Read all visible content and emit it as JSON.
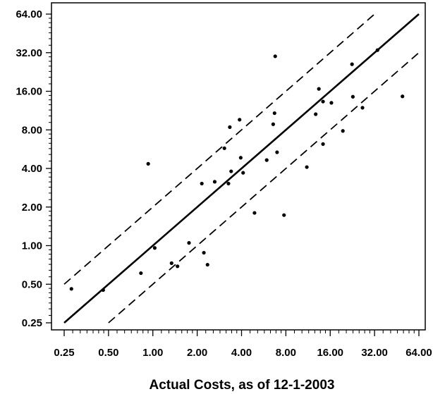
{
  "chart_data": {
    "type": "scatter",
    "title": "",
    "xlabel": "Actual Costs, as of 12-1-2003",
    "ylabel": "",
    "x_scale": "log2",
    "y_scale": "log2",
    "xlim": [
      0.25,
      64
    ],
    "ylim": [
      0.25,
      64
    ],
    "x_ticks": [
      0.25,
      0.5,
      1,
      2,
      4,
      8,
      16,
      32,
      64
    ],
    "x_tick_labels": [
      "0.25",
      "0.50",
      "1.00",
      "2.00",
      "4.00",
      "8.00",
      "16.00",
      "32.00",
      "64.00"
    ],
    "y_ticks": [
      0.25,
      0.5,
      1,
      2,
      4,
      8,
      16,
      32,
      64
    ],
    "y_tick_labels": [
      "0.25",
      "0.50",
      "1.00",
      "2.00",
      "4.00",
      "8.00",
      "16.00",
      "32.00",
      "64.00"
    ],
    "grid": false,
    "points": [
      {
        "x": 0.28,
        "y": 0.46
      },
      {
        "x": 0.46,
        "y": 0.45
      },
      {
        "x": 0.83,
        "y": 0.61
      },
      {
        "x": 0.93,
        "y": 4.35
      },
      {
        "x": 1.03,
        "y": 0.96
      },
      {
        "x": 1.34,
        "y": 0.73
      },
      {
        "x": 1.47,
        "y": 0.69
      },
      {
        "x": 1.76,
        "y": 1.05
      },
      {
        "x": 2.15,
        "y": 3.05
      },
      {
        "x": 2.22,
        "y": 0.88
      },
      {
        "x": 2.35,
        "y": 0.71
      },
      {
        "x": 2.63,
        "y": 3.15
      },
      {
        "x": 3.06,
        "y": 5.75
      },
      {
        "x": 3.26,
        "y": 3.05
      },
      {
        "x": 3.33,
        "y": 8.4
      },
      {
        "x": 3.4,
        "y": 3.8
      },
      {
        "x": 3.88,
        "y": 9.6
      },
      {
        "x": 3.95,
        "y": 4.85
      },
      {
        "x": 4.1,
        "y": 3.7
      },
      {
        "x": 4.9,
        "y": 1.8
      },
      {
        "x": 5.93,
        "y": 4.65
      },
      {
        "x": 6.56,
        "y": 8.85
      },
      {
        "x": 6.7,
        "y": 10.8
      },
      {
        "x": 6.77,
        "y": 30.0
      },
      {
        "x": 6.97,
        "y": 5.35
      },
      {
        "x": 7.77,
        "y": 1.73
      },
      {
        "x": 11.1,
        "y": 4.1
      },
      {
        "x": 12.75,
        "y": 10.6
      },
      {
        "x": 13.4,
        "y": 16.7
      },
      {
        "x": 14.3,
        "y": 13.3
      },
      {
        "x": 14.3,
        "y": 6.2
      },
      {
        "x": 16.3,
        "y": 13.0
      },
      {
        "x": 19.5,
        "y": 7.85
      },
      {
        "x": 22.5,
        "y": 26.0
      },
      {
        "x": 22.8,
        "y": 14.5
      },
      {
        "x": 26.5,
        "y": 11.9
      },
      {
        "x": 33.5,
        "y": 33.5
      },
      {
        "x": 49.5,
        "y": 14.6
      }
    ],
    "lines": [
      {
        "style": "solid",
        "x": [
          0.25,
          64
        ],
        "y": [
          0.25,
          64
        ]
      },
      {
        "style": "dashed",
        "x": [
          0.25,
          33.2
        ],
        "y": [
          0.5,
          66.4
        ]
      },
      {
        "style": "dashed",
        "x": [
          0.5,
          64
        ],
        "y": [
          0.25,
          32
        ]
      }
    ]
  }
}
